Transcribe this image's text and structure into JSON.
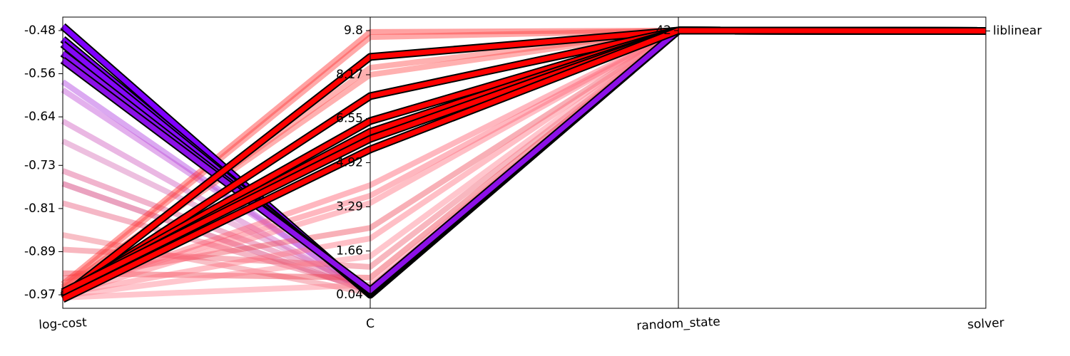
{
  "chart_data": {
    "type": "parallel",
    "axes": [
      {
        "label": "log-cost",
        "ylim": [
          -0.995,
          -0.455
        ],
        "ticks": [
          -0.48,
          -0.56,
          -0.64,
          -0.73,
          -0.81,
          -0.89,
          -0.97
        ]
      },
      {
        "label": "C",
        "ylim": [
          -0.46,
          10.3
        ],
        "ticks": [
          9.8,
          8.17,
          6.55,
          4.92,
          3.29,
          1.66,
          0.04
        ]
      },
      {
        "label": "random_state",
        "ylim": [
          40,
          42.097
        ],
        "ticks": [
          42
        ]
      },
      {
        "label": "solver",
        "ylim": [
          -2,
          0.1
        ],
        "ticks": [
          {
            "value": 0,
            "label": "liblinear"
          }
        ]
      }
    ],
    "lines": [
      {
        "values": [
          -0.575,
          0.05,
          42,
          0
        ],
        "color": "#b040e0",
        "highlight": false
      },
      {
        "values": [
          -0.59,
          0.12,
          42,
          0
        ],
        "color": "#c050d8",
        "highlight": false
      },
      {
        "values": [
          -0.648,
          0.08,
          42,
          0
        ],
        "color": "#d060c0",
        "highlight": false
      },
      {
        "values": [
          -0.685,
          0.2,
          42,
          0
        ],
        "color": "#d870b8",
        "highlight": false
      },
      {
        "values": [
          -0.74,
          0.3,
          42,
          0
        ],
        "color": "#e05890",
        "highlight": false
      },
      {
        "values": [
          -0.764,
          0.15,
          42,
          0
        ],
        "color": "#d03070",
        "highlight": false
      },
      {
        "values": [
          -0.8,
          0.25,
          42,
          0
        ],
        "color": "#e86080",
        "highlight": false
      },
      {
        "values": [
          -0.859,
          0.1,
          42,
          0
        ],
        "color": "#f07080",
        "highlight": false
      },
      {
        "values": [
          -0.886,
          1.07,
          42,
          0
        ],
        "color": "#f06070",
        "highlight": false
      },
      {
        "values": [
          -0.93,
          0.67,
          42,
          0
        ],
        "color": "#f04050",
        "highlight": false
      },
      {
        "values": [
          -0.94,
          2.51,
          42,
          0
        ],
        "color": "#f05060",
        "highlight": false
      },
      {
        "values": [
          -0.95,
          9.75,
          42,
          0
        ],
        "color": "#ff3030",
        "highlight": false
      },
      {
        "values": [
          -0.955,
          9.56,
          42,
          0
        ],
        "color": "#ff4040",
        "highlight": false
      },
      {
        "values": [
          -0.96,
          8.43,
          42,
          0
        ],
        "color": "#ff5050",
        "highlight": false
      },
      {
        "values": [
          -0.958,
          8.17,
          42,
          0
        ],
        "color": "#ff5050",
        "highlight": false
      },
      {
        "values": [
          -0.965,
          4.09,
          42,
          0
        ],
        "color": "#ff6070",
        "highlight": false
      },
      {
        "values": [
          -0.962,
          3.7,
          42,
          0
        ],
        "color": "#ff6070",
        "highlight": false
      },
      {
        "values": [
          -0.97,
          3.43,
          42,
          0
        ],
        "color": "#ff7080",
        "highlight": false
      },
      {
        "values": [
          -0.968,
          2.12,
          42,
          0
        ],
        "color": "#ff7080",
        "highlight": false
      },
      {
        "values": [
          -0.972,
          1.46,
          42,
          0
        ],
        "color": "#ff8090",
        "highlight": false
      },
      {
        "values": [
          -0.975,
          0.41,
          42,
          0
        ],
        "color": "#ff8090",
        "highlight": false
      },
      {
        "values": [
          -0.472,
          0.04,
          42,
          0
        ],
        "color": "#8000ff",
        "highlight": true
      },
      {
        "values": [
          -0.496,
          0.06,
          42,
          0
        ],
        "color": "#8000ff",
        "highlight": true
      },
      {
        "values": [
          -0.505,
          0.1,
          42,
          0
        ],
        "color": "#8408f8",
        "highlight": true
      },
      {
        "values": [
          -0.522,
          0.15,
          42,
          0
        ],
        "color": "#8810f0",
        "highlight": true
      },
      {
        "values": [
          -0.535,
          0.2,
          42,
          0
        ],
        "color": "#8c10e8",
        "highlight": true
      },
      {
        "values": [
          -0.972,
          8.83,
          42,
          0
        ],
        "color": "#ff0000",
        "highlight": true
      },
      {
        "values": [
          -0.975,
          7.38,
          42,
          0
        ],
        "color": "#ff0000",
        "highlight": true
      },
      {
        "values": [
          -0.968,
          6.46,
          42,
          0
        ],
        "color": "#ff0000",
        "highlight": true
      },
      {
        "values": [
          -0.97,
          6.06,
          42,
          0
        ],
        "color": "#ff0000",
        "highlight": true
      },
      {
        "values": [
          -0.965,
          5.8,
          42,
          0
        ],
        "color": "#ff0000",
        "highlight": true
      },
      {
        "values": [
          -0.978,
          5.41,
          42,
          0
        ],
        "color": "#ff0000",
        "highlight": true
      }
    ]
  }
}
